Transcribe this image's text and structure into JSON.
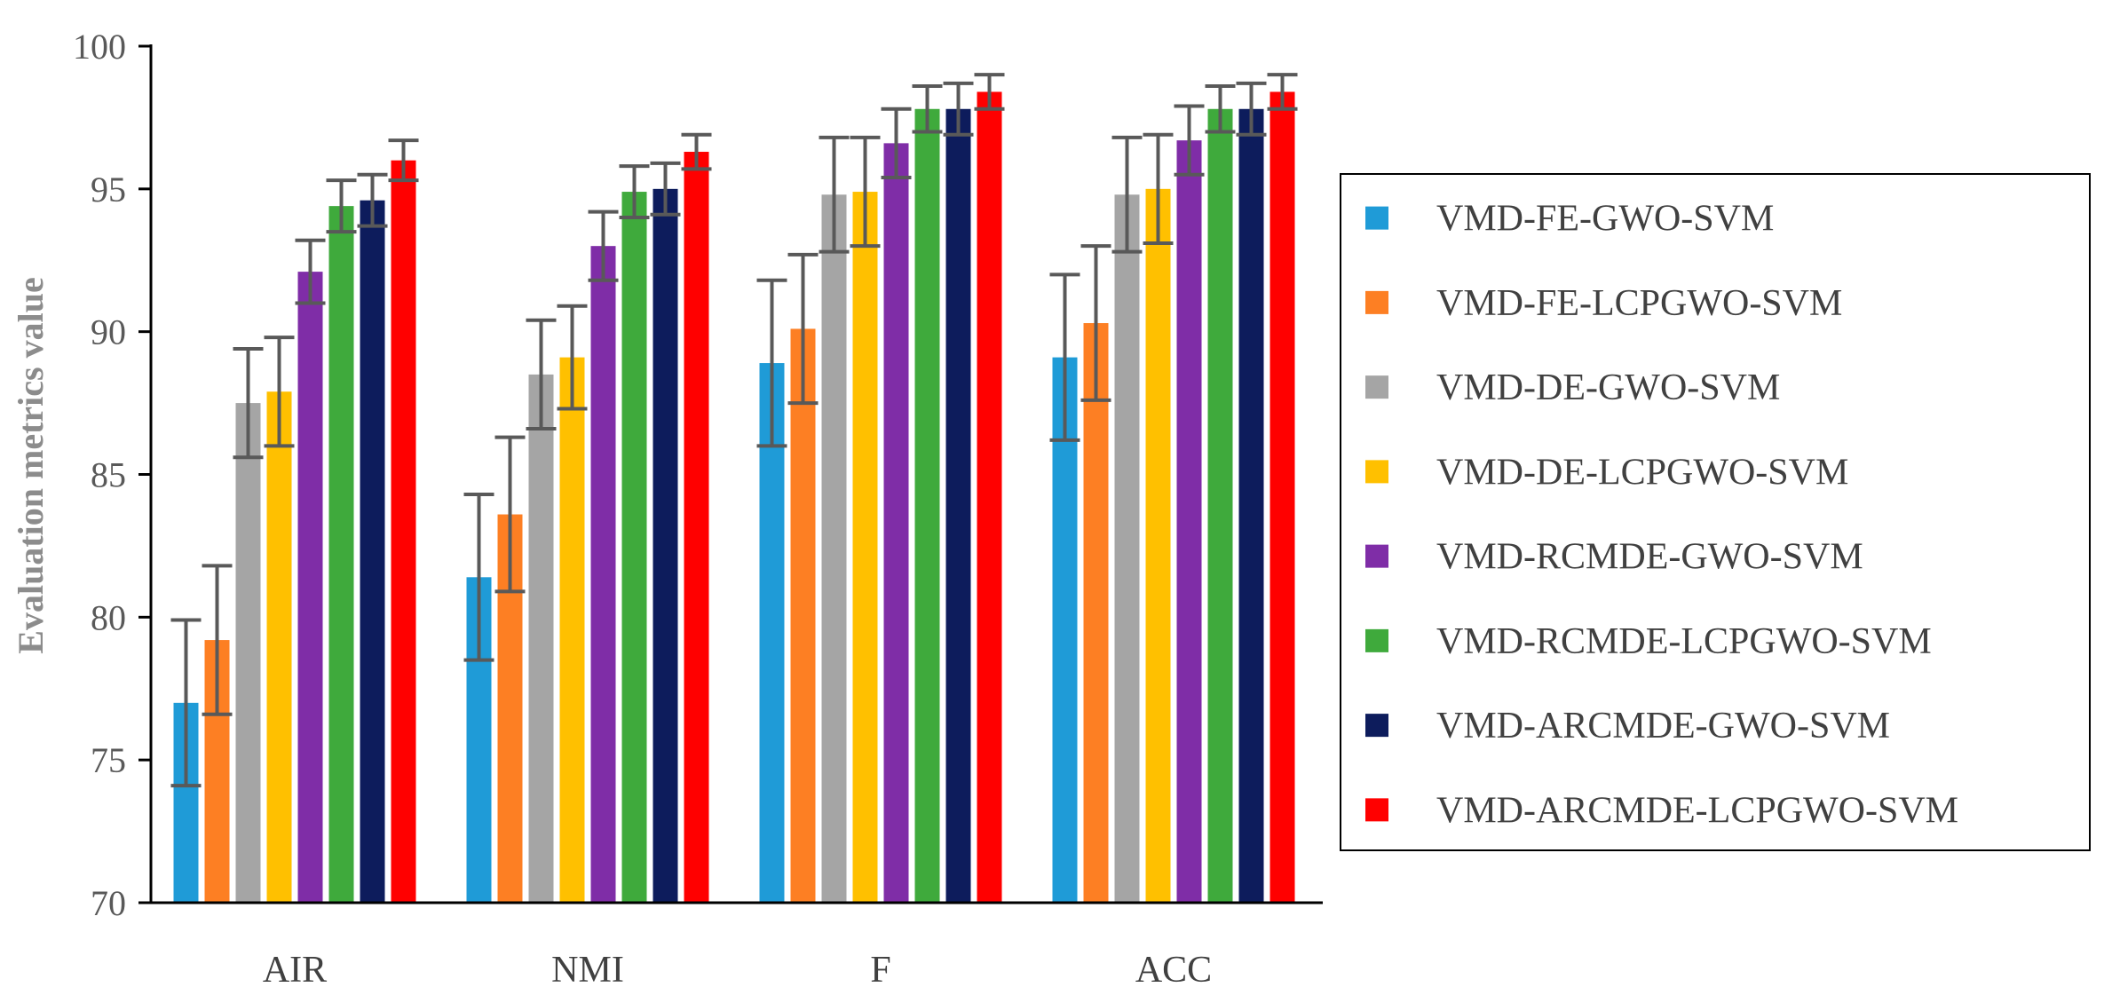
{
  "chart_data": {
    "type": "bar",
    "title": "",
    "xlabel": "",
    "ylabel": "Evaluation metrics value",
    "ylim": [
      70,
      100
    ],
    "yticks": [
      70,
      75,
      80,
      85,
      90,
      95,
      100
    ],
    "categories": [
      "AIR",
      "NMI",
      "F",
      "ACC"
    ],
    "legend_position": "right",
    "series": [
      {
        "name": "VMD-FE-GWO-SVM",
        "color": "#1f9bd7",
        "values": [
          77.0,
          81.4,
          88.9,
          89.1
        ],
        "errors": [
          2.9,
          2.9,
          2.9,
          2.9
        ]
      },
      {
        "name": "VMD-FE-LCPGWO-SVM",
        "color": "#fd7f23",
        "values": [
          79.2,
          83.6,
          90.1,
          90.3
        ],
        "errors": [
          2.6,
          2.7,
          2.6,
          2.7
        ]
      },
      {
        "name": "VMD-DE-GWO-SVM",
        "color": "#a5a5a5",
        "values": [
          87.5,
          88.5,
          94.8,
          94.8
        ],
        "errors": [
          1.9,
          1.9,
          2.0,
          2.0
        ]
      },
      {
        "name": "VMD-DE-LCPGWO-SVM",
        "color": "#ffc000",
        "values": [
          87.9,
          89.1,
          94.9,
          95.0
        ],
        "errors": [
          1.9,
          1.8,
          1.9,
          1.9
        ]
      },
      {
        "name": "VMD-RCMDE-GWO-SVM",
        "color": "#7f2da7",
        "values": [
          92.1,
          93.0,
          96.6,
          96.7
        ],
        "errors": [
          1.1,
          1.2,
          1.2,
          1.2
        ]
      },
      {
        "name": "VMD-RCMDE-LCPGWO-SVM",
        "color": "#3faa3c",
        "values": [
          94.4,
          94.9,
          97.8,
          97.8
        ],
        "errors": [
          0.9,
          0.9,
          0.8,
          0.8
        ]
      },
      {
        "name": "VMD-ARCMDE-GWO-SVM",
        "color": "#0d1c5c",
        "values": [
          94.6,
          95.0,
          97.8,
          97.8
        ],
        "errors": [
          0.9,
          0.9,
          0.9,
          0.9
        ]
      },
      {
        "name": "VMD-ARCMDE-LCPGWO-SVM",
        "color": "#ff0000",
        "values": [
          96.0,
          96.3,
          98.4,
          98.4
        ],
        "errors": [
          0.7,
          0.6,
          0.6,
          0.6
        ]
      }
    ]
  }
}
